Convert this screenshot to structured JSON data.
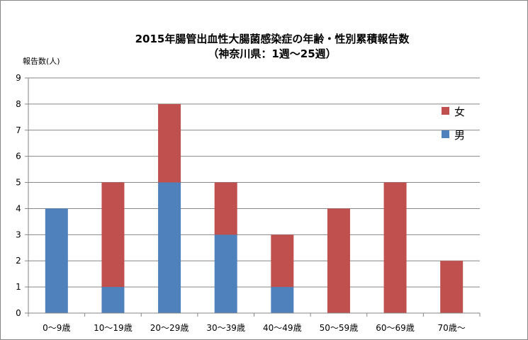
{
  "chart_data": {
    "type": "bar",
    "stacked": true,
    "title": "2015年腸管出血性大腸菌感染症の年齢・性別累積報告数",
    "subtitle": "（神奈川県：1週～25週）",
    "ylabel": "報告数(人)",
    "xlabel": "",
    "ylim": [
      0,
      9
    ],
    "yticks": [
      0,
      1,
      2,
      3,
      4,
      5,
      6,
      7,
      8,
      9
    ],
    "grid": true,
    "legend_position": "right",
    "categories": [
      "0～9歳",
      "10～19歳",
      "20～29歳",
      "30～39歳",
      "40～49歳",
      "50～59歳",
      "60～69歳",
      "70歳～"
    ],
    "series": [
      {
        "name": "男",
        "color": "#4F81BD",
        "values": [
          4,
          1,
          5,
          3,
          1,
          0,
          0,
          0
        ]
      },
      {
        "name": "女",
        "color": "#C0504D",
        "values": [
          0,
          4,
          3,
          2,
          2,
          4,
          5,
          2
        ]
      }
    ],
    "legend_order": [
      "女",
      "男"
    ]
  }
}
